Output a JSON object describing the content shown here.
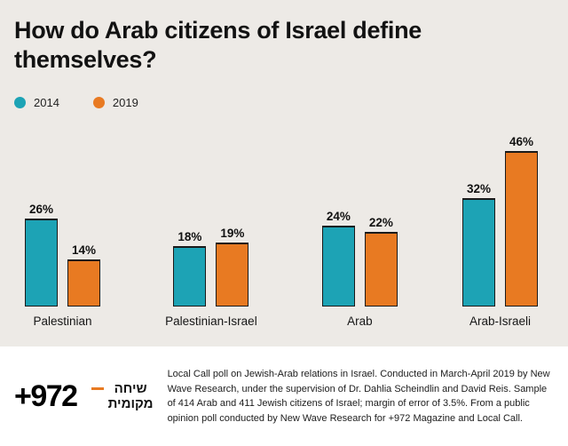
{
  "title": "How do Arab citizens of Israel define themselves?",
  "chart_data": {
    "type": "bar",
    "categories": [
      "Palestinian",
      "Palestinian-Israel",
      "Arab",
      "Arab-Israeli"
    ],
    "series": [
      {
        "name": "2014",
        "color": "#1da3b5",
        "values": [
          26,
          18,
          24,
          32
        ]
      },
      {
        "name": "2019",
        "color": "#e87a22",
        "values": [
          14,
          19,
          22,
          46
        ]
      }
    ],
    "value_suffix": "%",
    "ylim": [
      0,
      50
    ],
    "grid": false,
    "legend_position": "top-left"
  },
  "colors": {
    "teal_2014": "#1da3b5",
    "orange_2019": "#e87a22",
    "chart_background": "#edeae6",
    "footer_background": "#ffffff"
  },
  "footer": {
    "logo_972": "+972",
    "logo_hebrew_line1": "שיחה",
    "logo_hebrew_line2": "מקומית",
    "caption": "Local Call poll on Jewish-Arab relations in Israel. Conducted in March-April 2019 by New Wave Research, under the supervision of Dr. Dahlia Scheindlin and David Reis. Sample of 414 Arab and 411 Jewish citizens of Israel; margin of error of 3.5%. From a public opinion poll conducted by New Wave Research for +972 Magazine and Local Call."
  }
}
